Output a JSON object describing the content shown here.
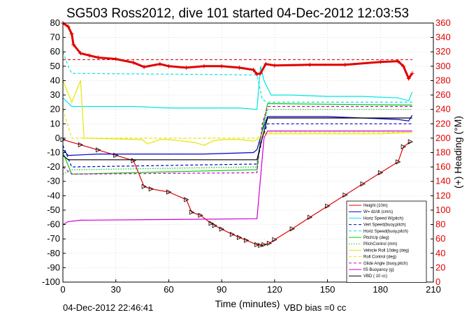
{
  "window": {
    "title": "SG503 Ross2012, dive 101 started 04-Dec-2012 12:03:53"
  },
  "footer": {
    "left_timestamp": "04-Dec-2012 22:46:41",
    "vbd_bias": "VBD bias =0 cc"
  },
  "colors": {
    "heading": "#e00000",
    "axis": "#000000",
    "background": "#ffffff"
  },
  "chart_data": {
    "type": "line",
    "title": "SG503 Ross2012, dive 101 started 04-Dec-2012 12:03:53",
    "xlabel": "Time (minutes)",
    "ylabel": "",
    "ylabel_right": "(+) Heading (°M)",
    "xlim": [
      0,
      210
    ],
    "ylim": [
      -100,
      80
    ],
    "ylim_right": [
      0,
      360
    ],
    "x_ticks": [
      0,
      30,
      60,
      90,
      120,
      150,
      180,
      210
    ],
    "y_ticks": [
      -100,
      -90,
      -80,
      -70,
      -60,
      -50,
      -40,
      -30,
      -20,
      -10,
      0,
      10,
      20,
      30,
      40,
      50,
      60,
      70,
      80
    ],
    "y_ticks_right": [
      0,
      20,
      40,
      60,
      80,
      100,
      120,
      140,
      160,
      180,
      200,
      220,
      240,
      260,
      280,
      300,
      320,
      340,
      360
    ],
    "grid": true,
    "legend_position": "lower-right",
    "series": [
      {
        "name": "Height (10m)",
        "color": "#e00000",
        "style": "solid-marked",
        "x": [
          0,
          10,
          20,
          30,
          40,
          46,
          50,
          60,
          70,
          73,
          78,
          84,
          86,
          90,
          96,
          100,
          104,
          110,
          112,
          114,
          117,
          120,
          130,
          140,
          150,
          160,
          170,
          180,
          190,
          193,
          197
        ],
        "y": [
          -1,
          -4.6,
          -8.2,
          -11.9,
          -15.6,
          -33.6,
          -35.3,
          -37.4,
          -42.7,
          -51.5,
          -53.6,
          -59.2,
          -60.7,
          -63.2,
          -66.8,
          -69,
          -71,
          -74,
          -74.5,
          -74,
          -73,
          -70.5,
          -63,
          -55,
          -47.2,
          -39.5,
          -31.8,
          -24,
          -16.5,
          -6,
          -2.5
        ]
      },
      {
        "name": "W= dz/dt (cm/s)",
        "color": "#0000cc",
        "style": "solid",
        "x": [
          0,
          3,
          20,
          50,
          80,
          108,
          110,
          113,
          116,
          130,
          150,
          170,
          190,
          196,
          198
        ],
        "y": [
          -8,
          -12,
          -11,
          -11,
          -11,
          -10,
          -8,
          5,
          15,
          15,
          15,
          14,
          13,
          12,
          16
        ]
      },
      {
        "name": "Horiz Speed W(pitch)",
        "color": "#00e5e5",
        "style": "solid",
        "x": [
          0,
          5,
          20,
          40,
          60,
          80,
          100,
          110,
          112,
          114,
          118,
          130,
          150,
          170,
          190,
          196,
          198
        ],
        "y": [
          28,
          22,
          22,
          22,
          21,
          21,
          21,
          20,
          50,
          40,
          30,
          30,
          29,
          29,
          28,
          26,
          32
        ]
      },
      {
        "name": "Vert Speed(buoy,pitch)",
        "color": "#0000cc",
        "style": "dashed",
        "x": [
          0,
          5,
          108,
          110,
          113,
          116,
          198
        ],
        "y": [
          -5,
          -20,
          -18,
          -18,
          0,
          10,
          10
        ]
      },
      {
        "name": "Horiz Speed(buoy,pitch)",
        "color": "#00e5e5",
        "style": "dashed",
        "x": [
          0,
          3,
          5,
          108,
          110,
          113,
          116,
          198
        ],
        "y": [
          60,
          50,
          45,
          44,
          44,
          27,
          25,
          25
        ]
      },
      {
        "name": "PitchUp (deg)",
        "color": "#00cc00",
        "style": "solid",
        "x": [
          0,
          5,
          108,
          110,
          112,
          116,
          198
        ],
        "y": [
          -10,
          -25,
          -22,
          -22,
          0,
          24,
          23
        ]
      },
      {
        "name": "PitchControl (mm)",
        "color": "#00cc00",
        "style": "dotted",
        "x": [
          0,
          5,
          108,
          110,
          112,
          116,
          198
        ],
        "y": [
          -25,
          -22,
          -20,
          -20,
          0,
          20,
          20
        ]
      },
      {
        "name": "Vehicle Roll 10deg (deg)",
        "color": "#e6e600",
        "style": "solid",
        "x": [
          0,
          5,
          10,
          12,
          45,
          48,
          55,
          60,
          75,
          80,
          85,
          90,
          100,
          108,
          112,
          114,
          120,
          150,
          180,
          198
        ],
        "y": [
          40,
          25,
          40,
          0,
          -1,
          -4,
          -1,
          -1,
          -3,
          -5,
          -2,
          -1,
          -1,
          -2,
          0,
          3,
          3,
          3,
          3,
          4
        ]
      },
      {
        "name": "Roll Control (deg)",
        "color": "#e6e600",
        "style": "dashed",
        "x": [
          0,
          5,
          100,
          110,
          114,
          198
        ],
        "y": [
          20,
          0,
          0,
          0,
          4,
          4
        ]
      },
      {
        "name": "Glide Angle (buoy,pitch)",
        "color": "#cc00cc",
        "style": "dashed",
        "x": [
          0,
          5,
          108,
          110,
          113,
          116,
          198
        ],
        "y": [
          -20,
          -25,
          -24,
          -24,
          10,
          22,
          22
        ]
      },
      {
        "name": "f/5 Buoyancy (g)",
        "color": "#cc00cc",
        "style": "solid",
        "x": [
          0,
          3,
          10,
          108,
          110,
          114,
          116,
          198
        ],
        "y": [
          -60,
          -58,
          -57,
          -56,
          -56,
          0,
          5,
          5
        ]
      },
      {
        "name": "VBD ( 10 cc)",
        "color": "#000000",
        "style": "solid",
        "x": [
          0,
          3,
          108,
          110,
          113,
          116,
          198
        ],
        "y": [
          -12,
          -15,
          -15,
          -15,
          0,
          14,
          14
        ]
      }
    ],
    "heading": {
      "name": "Heading",
      "axis": "right",
      "color": "#e00000",
      "x": [
        0,
        3,
        5,
        6,
        10,
        15,
        20,
        30,
        40,
        46,
        55,
        60,
        70,
        80,
        90,
        100,
        108,
        110,
        112,
        115,
        120,
        140,
        160,
        180,
        190,
        193,
        196,
        198
      ],
      "y": [
        360,
        355,
        345,
        330,
        318,
        315,
        312,
        310,
        305,
        299,
        303,
        300,
        298,
        300,
        300,
        298,
        295,
        289,
        290,
        303,
        301,
        302,
        302,
        306,
        307,
        300,
        283,
        290
      ],
      "dashed_reference": 309
    }
  }
}
